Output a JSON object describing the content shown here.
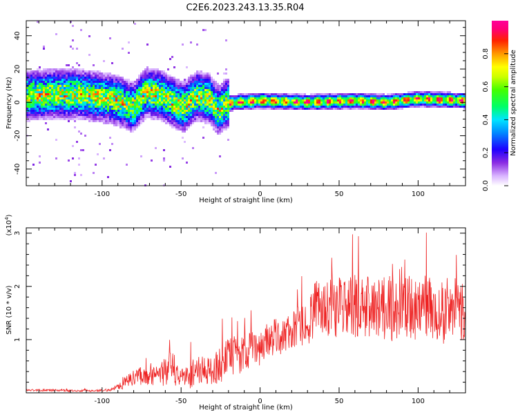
{
  "title": "C2E6.2023.243.13.35.R04",
  "colors": {
    "snr_line": "#ee2222",
    "background": "#ffffff",
    "axis": "#000000"
  },
  "chart_data": [
    {
      "type": "heatmap",
      "xlabel": "Height of straight line (km)",
      "ylabel": "Frequency (Hz)",
      "xlim": [
        -148,
        130
      ],
      "ylim": [
        -50,
        49
      ],
      "xticks": [
        -100,
        -50,
        0,
        50,
        100
      ],
      "yticks": [
        -40,
        -20,
        0,
        20,
        40
      ],
      "x_tick_labels": [
        "-100",
        "-50",
        "0",
        "50",
        "100"
      ],
      "y_tick_labels": [
        "-40",
        "-20",
        "0",
        "20",
        "40"
      ],
      "colorbar": {
        "label": "Normalized spectral amplitude",
        "range": [
          0,
          1
        ],
        "ticks": [
          0.0,
          0.2,
          0.4,
          0.6,
          0.8
        ],
        "tick_labels": [
          "0.0",
          "0.2",
          "0.4",
          "0.6",
          "0.8"
        ],
        "colormap": "rainbow-white-to-pink"
      },
      "ridge": [
        {
          "x": -148,
          "y": 4
        },
        {
          "x": -130,
          "y": 5
        },
        {
          "x": -115,
          "y": 5
        },
        {
          "x": -100,
          "y": 3
        },
        {
          "x": -90,
          "y": 1
        },
        {
          "x": -80,
          "y": -3
        },
        {
          "x": -72,
          "y": 6
        },
        {
          "x": -62,
          "y": 4
        },
        {
          "x": -55,
          "y": 0
        },
        {
          "x": -48,
          "y": -3
        },
        {
          "x": -40,
          "y": 4
        },
        {
          "x": -32,
          "y": 2
        },
        {
          "x": -26,
          "y": -5
        },
        {
          "x": -22,
          "y": -1
        },
        {
          "x": -15,
          "y": 0
        },
        {
          "x": 0,
          "y": 1
        },
        {
          "x": 30,
          "y": 0
        },
        {
          "x": 60,
          "y": 1
        },
        {
          "x": 80,
          "y": 0
        },
        {
          "x": 100,
          "y": 2
        },
        {
          "x": 130,
          "y": 1
        }
      ]
    },
    {
      "type": "line",
      "xlabel": "Height of straight line (km)",
      "ylabel": "SNR (10 * v/v)",
      "y_multiplier": "(x10",
      "y_multiplier_exp": "4",
      "y_multiplier_close": ")",
      "xlim": [
        -148,
        130
      ],
      "ylim": [
        0,
        3.1
      ],
      "xticks": [
        -100,
        -50,
        0,
        50,
        100
      ],
      "yticks": [
        1,
        2,
        3
      ],
      "x_tick_labels": [
        "-100",
        "-50",
        "0",
        "50",
        "100"
      ],
      "y_tick_labels": [
        "1",
        "2",
        "3"
      ],
      "series": [
        {
          "x": [
            -148,
            -135,
            -120,
            -105,
            -95,
            -90,
            -85,
            -80,
            -75,
            -70,
            -65,
            -60,
            -55,
            -50,
            -45,
            -40,
            -35,
            -30,
            -25,
            -20,
            -15,
            -10,
            -5,
            0,
            5,
            10,
            15,
            20,
            25,
            30,
            35,
            40,
            45,
            50,
            55,
            60,
            65,
            70,
            75,
            80,
            85,
            90,
            95,
            100,
            105,
            110,
            115,
            120,
            125,
            130
          ],
          "y": [
            0.05,
            0.05,
            0.04,
            0.04,
            0.05,
            0.12,
            0.2,
            0.28,
            0.35,
            0.3,
            0.32,
            0.42,
            0.45,
            0.3,
            0.32,
            0.45,
            0.4,
            0.42,
            0.55,
            0.62,
            0.7,
            0.78,
            0.82,
            0.85,
            1.0,
            1.05,
            1.08,
            1.15,
            1.25,
            1.3,
            1.55,
            1.6,
            1.65,
            1.62,
            1.58,
            1.62,
            1.6,
            1.58,
            1.65,
            1.55,
            1.62,
            1.7,
            1.58,
            1.6,
            1.62,
            1.55,
            1.5,
            1.6,
            1.55,
            1.6
          ],
          "jitter": [
            0.02,
            0.02,
            0.02,
            0.02,
            0.02,
            0.06,
            0.12,
            0.15,
            0.2,
            0.15,
            0.18,
            0.3,
            0.35,
            0.15,
            0.25,
            0.3,
            0.25,
            0.3,
            0.35,
            0.4,
            0.4,
            0.35,
            0.35,
            0.35,
            0.35,
            0.35,
            0.35,
            0.35,
            0.4,
            0.4,
            0.55,
            0.55,
            0.6,
            0.6,
            0.6,
            0.6,
            0.6,
            0.6,
            0.6,
            0.6,
            0.65,
            0.7,
            0.6,
            0.6,
            0.6,
            0.6,
            0.6,
            0.6,
            0.6,
            0.6
          ]
        }
      ]
    }
  ]
}
